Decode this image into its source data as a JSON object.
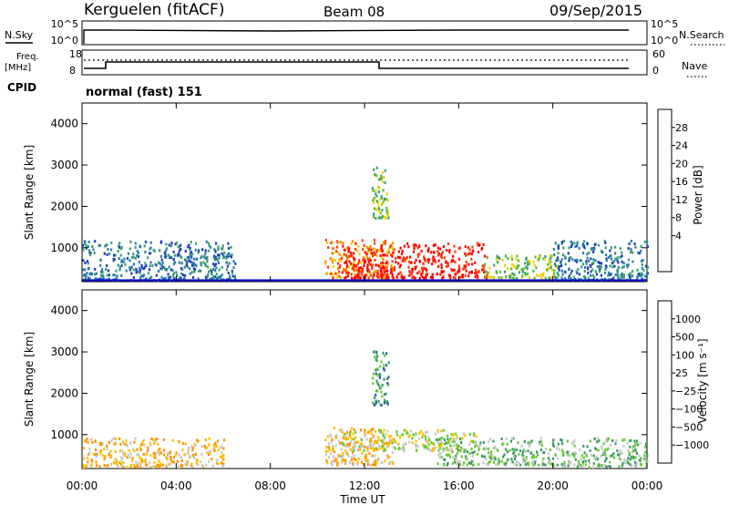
{
  "header": {
    "station": "Kerguelen (fitACF)",
    "beam": "Beam 08",
    "date": "09/Sep/2015"
  },
  "top_panels": {
    "nsky_label": "N.Sky",
    "nsky_ticks": [
      "10^5",
      "10^0"
    ],
    "nsearch_label": "N.Search",
    "nsearch_ticks": [
      "10^5",
      "10^0"
    ],
    "freq_label": "Freq.",
    "freq_unit": "[MHz]",
    "freq_ticks": [
      "18",
      "8"
    ],
    "nave_label": "Nave",
    "nave_ticks": [
      "60",
      "0"
    ],
    "cpid_label": "CPID",
    "cpid_text": "normal (fast) 151"
  },
  "chart_data": [
    {
      "type": "heatmap",
      "ylabel": "Slant Range [km]",
      "ylim": [
        180,
        4500
      ],
      "yticks": [
        {
          "value": 1000,
          "label": "1000"
        },
        {
          "value": 2000,
          "label": "2000"
        },
        {
          "value": 3000,
          "label": "3000"
        },
        {
          "value": 4000,
          "label": "4000"
        }
      ],
      "colorbar": {
        "label": "Power [dB]",
        "ticks": [
          "28",
          "24",
          "20",
          "16",
          "12",
          "8",
          "4"
        ],
        "colors": [
          "#0000ff",
          "#2040b8",
          "#2c7fa8",
          "#3aa072",
          "#58c030",
          "#f0d000",
          "#ff8a00",
          "#ff4000",
          "#ff0000"
        ]
      },
      "echo_regions": [
        {
          "t0": 0.0,
          "t1": 6.5,
          "r0": 200,
          "r1": 1150,
          "level": 2
        },
        {
          "t0": 10.3,
          "t1": 13.2,
          "r0": 250,
          "r1": 1200,
          "level": 6
        },
        {
          "t0": 11.0,
          "t1": 17.2,
          "r0": 250,
          "r1": 1100,
          "level": 8
        },
        {
          "t0": 12.3,
          "t1": 13.0,
          "r0": 1700,
          "r1": 3000,
          "level": 4
        },
        {
          "t0": 17.0,
          "t1": 20.2,
          "r0": 250,
          "r1": 800,
          "level": 4
        },
        {
          "t0": 20.0,
          "t1": 24.0,
          "r0": 200,
          "r1": 1150,
          "level": 2
        }
      ]
    },
    {
      "type": "heatmap",
      "xlabel": "Time UT",
      "ylabel": "Slant Range [km]",
      "xlim": [
        0,
        24
      ],
      "ylim": [
        180,
        4500
      ],
      "xticks": [
        {
          "value": 0,
          "label": "00:00"
        },
        {
          "value": 4,
          "label": "04:00"
        },
        {
          "value": 8,
          "label": "08:00"
        },
        {
          "value": 12,
          "label": "12:00"
        },
        {
          "value": 16,
          "label": "16:00"
        },
        {
          "value": 20,
          "label": "20:00"
        },
        {
          "value": 24,
          "label": "00:00"
        }
      ],
      "yticks": [
        {
          "value": 1000,
          "label": "1000"
        },
        {
          "value": 2000,
          "label": "2000"
        },
        {
          "value": 3000,
          "label": "3000"
        },
        {
          "value": 4000,
          "label": "4000"
        }
      ],
      "colorbar": {
        "label": "Velocity [m s⁻¹]",
        "ticks": [
          "1000",
          "500",
          "100",
          "25",
          "−25",
          "−100",
          "−500",
          "−1000"
        ],
        "colors": [
          "#1030d0",
          "#2c62b0",
          "#3a9a68",
          "#66cc33",
          "#c8c8c8",
          "#ffc000",
          "#ff9000",
          "#ff5000",
          "#ff0000"
        ]
      },
      "echo_regions": [
        {
          "t0": 0.0,
          "t1": 6.0,
          "r0": 200,
          "r1": 900,
          "level": 5
        },
        {
          "t0": 10.3,
          "t1": 13.2,
          "r0": 250,
          "r1": 1150,
          "level": 5
        },
        {
          "t0": 11.0,
          "t1": 17.0,
          "r0": 600,
          "r1": 1100,
          "level": 4
        },
        {
          "t0": 12.3,
          "t1": 13.0,
          "r0": 1700,
          "r1": 3000,
          "level": 2
        },
        {
          "t0": 15.0,
          "t1": 20.0,
          "r0": 250,
          "r1": 900,
          "level": 3
        },
        {
          "t0": 20.0,
          "t1": 24.0,
          "r0": 200,
          "r1": 900,
          "level": 3
        }
      ]
    }
  ]
}
